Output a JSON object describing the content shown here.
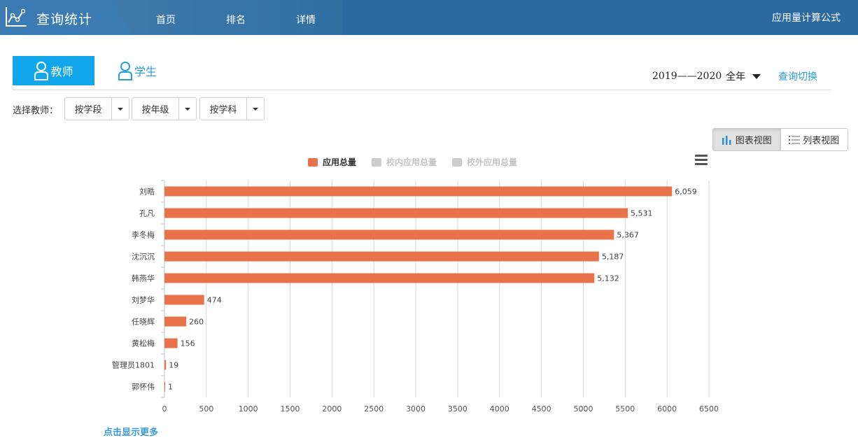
{
  "header": {
    "title": "查询统计",
    "nav": [
      "首页",
      "排名",
      "详情"
    ],
    "formula": "应用量计算公式"
  },
  "tabs": {
    "teacher": "教师",
    "student": "学生"
  },
  "year": {
    "range": "2019——2020",
    "term": "全年"
  },
  "query_switch": "查询切换",
  "filters": {
    "label": "选择教师：",
    "options": [
      "按学段",
      "按年级",
      "按学科"
    ]
  },
  "views": {
    "chart": "图表视图",
    "list": "列表视图"
  },
  "legend": [
    {
      "label": "应用总量",
      "color": "#e8734a",
      "active": true
    },
    {
      "label": "校内应用总量",
      "color": "#cccccc",
      "active": false
    },
    {
      "label": "校外应用总量",
      "color": "#cccccc",
      "active": false
    }
  ],
  "more": "点击显示更多",
  "chart_data": {
    "type": "bar",
    "orientation": "horizontal",
    "categories": [
      "刘晧",
      "孔凡",
      "李冬梅",
      "沈沉沉",
      "韩燕华",
      "刘梦华",
      "任晓辉",
      "黄松梅",
      "管理员1801",
      "郭怀伟"
    ],
    "series": [
      {
        "name": "应用总量",
        "values": [
          6059,
          5531,
          5367,
          5187,
          5132,
          474,
          260,
          156,
          19,
          1
        ],
        "color": "#e8734a"
      }
    ],
    "value_labels": [
      "6,059",
      "5,531",
      "5,367",
      "5,187",
      "5,132",
      "474",
      "260",
      "156",
      "19",
      "1"
    ],
    "xticks": [
      0,
      500,
      1000,
      1500,
      2000,
      2500,
      3000,
      3500,
      4000,
      4500,
      5000,
      5500,
      6000,
      6500
    ],
    "xlim": [
      0,
      6500
    ],
    "grid": true,
    "legend_position": "top"
  }
}
